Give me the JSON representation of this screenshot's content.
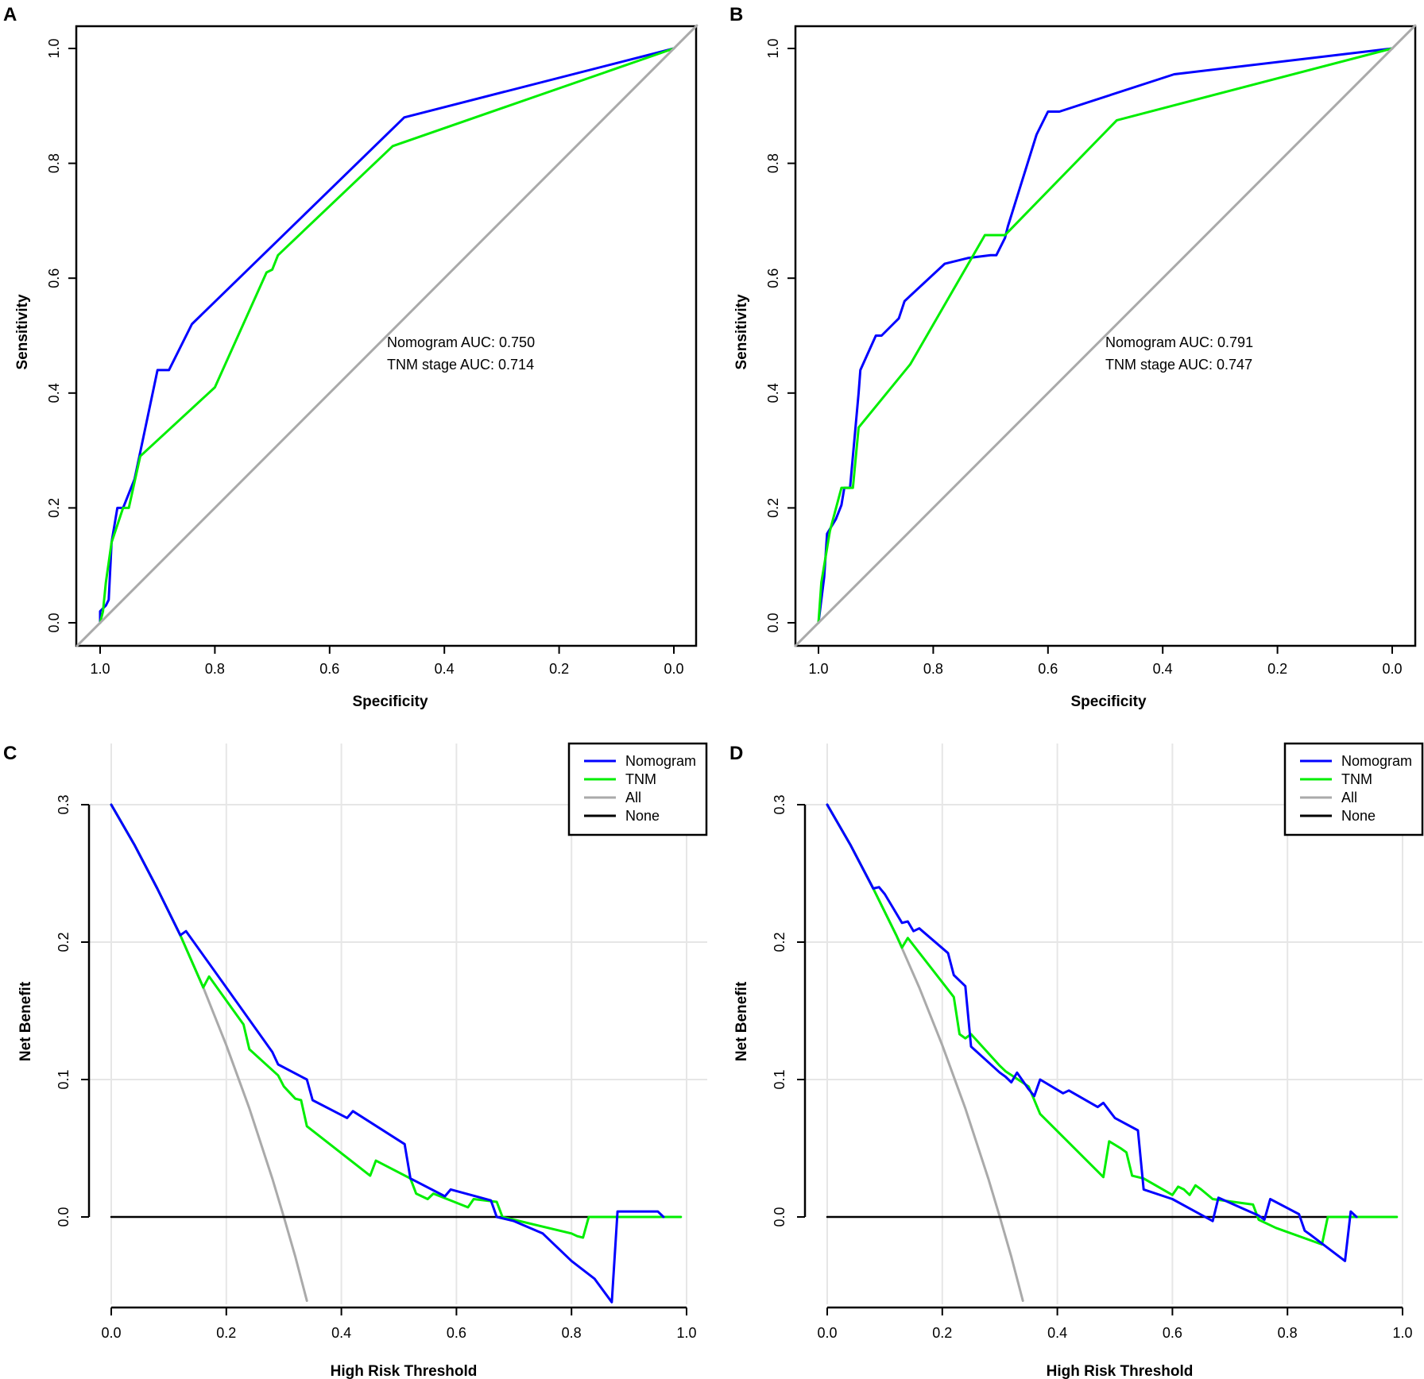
{
  "chart_data": [
    {
      "panel": "A",
      "type": "line",
      "xlabel": "Specificity",
      "ylabel": "Sensitivity",
      "xlim": [
        1.0,
        0.0
      ],
      "ylim": [
        0.0,
        1.0
      ],
      "xticks": [
        "1.0",
        "0.8",
        "0.6",
        "0.4",
        "0.2",
        "0.0"
      ],
      "yticks": [
        "0.0",
        "0.2",
        "0.4",
        "0.6",
        "0.8",
        "1.0"
      ],
      "annotations": [
        {
          "text": "Nomogram AUC: 0.750",
          "color": "#0000ff"
        },
        {
          "text": "TNM stage AUC: 0.714",
          "color": "#00ee00"
        }
      ],
      "series": [
        {
          "name": "Nomogram",
          "color": "#0000ff",
          "x": [
            1.0,
            1.0,
            0.99,
            0.985,
            0.98,
            0.97,
            0.96,
            0.94,
            0.9,
            0.88,
            0.84,
            0.47,
            0.0
          ],
          "y": [
            0.0,
            0.02,
            0.03,
            0.04,
            0.14,
            0.2,
            0.2,
            0.25,
            0.44,
            0.44,
            0.52,
            0.88,
            1.0
          ]
        },
        {
          "name": "TNM stage",
          "color": "#00ee00",
          "x": [
            1.0,
            0.995,
            0.99,
            0.98,
            0.96,
            0.95,
            0.93,
            0.8,
            0.71,
            0.7,
            0.69,
            0.49,
            0.0
          ],
          "y": [
            0.0,
            0.02,
            0.07,
            0.14,
            0.2,
            0.2,
            0.29,
            0.41,
            0.61,
            0.615,
            0.64,
            0.83,
            1.0
          ]
        },
        {
          "name": "Reference",
          "color": "#aaaaaa",
          "x": [
            1.04,
            -0.04
          ],
          "y": [
            -0.04,
            1.04
          ]
        }
      ]
    },
    {
      "panel": "B",
      "type": "line",
      "xlabel": "Specificity",
      "ylabel": "Sensitivity",
      "xlim": [
        1.0,
        0.0
      ],
      "ylim": [
        0.0,
        1.0
      ],
      "xticks": [
        "1.0",
        "0.8",
        "0.6",
        "0.4",
        "0.2",
        "0.0"
      ],
      "yticks": [
        "0.0",
        "0.2",
        "0.4",
        "0.6",
        "0.8",
        "1.0"
      ],
      "annotations": [
        {
          "text": "Nomogram AUC: 0.791",
          "color": "#0000ff"
        },
        {
          "text": "TNM stage AUC: 0.747",
          "color": "#00ee00"
        }
      ],
      "series": [
        {
          "name": "Nomogram",
          "color": "#0000ff",
          "x": [
            1.0,
            0.995,
            0.99,
            0.985,
            0.97,
            0.96,
            0.955,
            0.945,
            0.93,
            0.927,
            0.9,
            0.89,
            0.87,
            0.86,
            0.85,
            0.78,
            0.74,
            0.7,
            0.69,
            0.675,
            0.67,
            0.62,
            0.6,
            0.58,
            0.38,
            0.0
          ],
          "y": [
            0.0,
            0.04,
            0.08,
            0.155,
            0.18,
            0.205,
            0.235,
            0.235,
            0.4,
            0.44,
            0.5,
            0.5,
            0.52,
            0.53,
            0.56,
            0.625,
            0.635,
            0.64,
            0.64,
            0.67,
            0.69,
            0.85,
            0.89,
            0.89,
            0.955,
            1.0
          ]
        },
        {
          "name": "TNM stage",
          "color": "#00ee00",
          "x": [
            1.0,
            0.995,
            0.98,
            0.96,
            0.94,
            0.93,
            0.84,
            0.71,
            0.675,
            0.48,
            0.0
          ],
          "y": [
            0.0,
            0.07,
            0.16,
            0.235,
            0.235,
            0.34,
            0.45,
            0.675,
            0.675,
            0.875,
            1.0
          ]
        },
        {
          "name": "Reference",
          "color": "#aaaaaa",
          "x": [
            1.04,
            -0.04
          ],
          "y": [
            -0.04,
            1.04
          ]
        }
      ]
    },
    {
      "panel": "C",
      "type": "line",
      "xlabel": "High Risk Threshold",
      "ylabel": "Net Benefit",
      "xlim": [
        0.0,
        1.0
      ],
      "ylim": [
        -0.06,
        0.3
      ],
      "xticks": [
        "0.0",
        "0.2",
        "0.4",
        "0.6",
        "0.8",
        "1.0"
      ],
      "yticks": [
        "0.0",
        "0.1",
        "0.2",
        "0.3"
      ],
      "legend": [
        "Nomogram",
        "TNM",
        "All",
        "None"
      ],
      "legend_position": "top-right",
      "series": [
        {
          "name": "All",
          "color": "#aaaaaa",
          "x": [
            0.0,
            0.04,
            0.08,
            0.12,
            0.16,
            0.2,
            0.24,
            0.28,
            0.3,
            0.32,
            0.34
          ],
          "y": [
            0.3,
            0.271,
            0.239,
            0.205,
            0.167,
            0.125,
            0.079,
            0.028,
            0.0,
            -0.029,
            -0.061
          ]
        },
        {
          "name": "None",
          "color": "#000000",
          "x": [
            0.0,
            0.99
          ],
          "y": [
            0.0,
            0.0
          ]
        },
        {
          "name": "TNM",
          "color": "#00ee00",
          "x": [
            0.0,
            0.04,
            0.08,
            0.12,
            0.16,
            0.17,
            0.23,
            0.24,
            0.29,
            0.3,
            0.32,
            0.33,
            0.34,
            0.45,
            0.46,
            0.52,
            0.53,
            0.55,
            0.56,
            0.62,
            0.63,
            0.67,
            0.68,
            0.8,
            0.81,
            0.82,
            0.83,
            0.99
          ],
          "y": [
            0.3,
            0.271,
            0.239,
            0.205,
            0.167,
            0.175,
            0.14,
            0.122,
            0.103,
            0.095,
            0.086,
            0.085,
            0.066,
            0.03,
            0.041,
            0.028,
            0.017,
            0.013,
            0.017,
            0.007,
            0.013,
            0.011,
            0.0,
            -0.012,
            -0.014,
            -0.015,
            0.0,
            0.0
          ]
        },
        {
          "name": "Nomogram",
          "color": "#0000ff",
          "x": [
            0.0,
            0.04,
            0.08,
            0.12,
            0.13,
            0.2,
            0.28,
            0.29,
            0.34,
            0.35,
            0.41,
            0.42,
            0.51,
            0.52,
            0.58,
            0.59,
            0.66,
            0.67,
            0.7,
            0.75,
            0.8,
            0.84,
            0.87,
            0.88,
            0.95,
            0.96
          ],
          "y": [
            0.3,
            0.271,
            0.239,
            0.205,
            0.208,
            0.167,
            0.12,
            0.111,
            0.1,
            0.085,
            0.072,
            0.077,
            0.053,
            0.028,
            0.015,
            0.02,
            0.012,
            0.0,
            -0.003,
            -0.012,
            -0.032,
            -0.045,
            -0.062,
            0.004,
            0.004,
            0.0
          ]
        }
      ]
    },
    {
      "panel": "D",
      "type": "line",
      "xlabel": "High Risk Threshold",
      "ylabel": "Net Benefit",
      "xlim": [
        0.0,
        1.0
      ],
      "ylim": [
        -0.06,
        0.3
      ],
      "xticks": [
        "0.0",
        "0.2",
        "0.4",
        "0.6",
        "0.8",
        "1.0"
      ],
      "yticks": [
        "0.0",
        "0.1",
        "0.2",
        "0.3"
      ],
      "legend": [
        "Nomogram",
        "TNM",
        "All",
        "None"
      ],
      "legend_position": "top-right",
      "series": [
        {
          "name": "All",
          "color": "#aaaaaa",
          "x": [
            0.0,
            0.04,
            0.08,
            0.12,
            0.16,
            0.2,
            0.24,
            0.28,
            0.3,
            0.32,
            0.34
          ],
          "y": [
            0.3,
            0.271,
            0.239,
            0.205,
            0.167,
            0.125,
            0.079,
            0.028,
            0.0,
            -0.029,
            -0.061
          ]
        },
        {
          "name": "None",
          "color": "#000000",
          "x": [
            0.0,
            0.99
          ],
          "y": [
            0.0,
            0.0
          ]
        },
        {
          "name": "TNM",
          "color": "#00ee00",
          "x": [
            0.0,
            0.04,
            0.08,
            0.12,
            0.13,
            0.14,
            0.22,
            0.23,
            0.24,
            0.25,
            0.3,
            0.31,
            0.35,
            0.37,
            0.48,
            0.49,
            0.51,
            0.52,
            0.53,
            0.55,
            0.6,
            0.61,
            0.62,
            0.63,
            0.64,
            0.65,
            0.67,
            0.74,
            0.75,
            0.78,
            0.86,
            0.87,
            0.99
          ],
          "y": [
            0.3,
            0.271,
            0.239,
            0.205,
            0.196,
            0.203,
            0.16,
            0.133,
            0.13,
            0.133,
            0.11,
            0.106,
            0.095,
            0.075,
            0.029,
            0.055,
            0.05,
            0.047,
            0.03,
            0.028,
            0.016,
            0.022,
            0.02,
            0.016,
            0.023,
            0.02,
            0.013,
            0.009,
            -0.002,
            -0.008,
            -0.02,
            0.0,
            0.0
          ]
        },
        {
          "name": "Nomogram",
          "color": "#0000ff",
          "x": [
            0.0,
            0.04,
            0.08,
            0.09,
            0.1,
            0.13,
            0.14,
            0.15,
            0.16,
            0.21,
            0.22,
            0.23,
            0.24,
            0.25,
            0.3,
            0.31,
            0.32,
            0.33,
            0.35,
            0.36,
            0.37,
            0.41,
            0.42,
            0.47,
            0.48,
            0.5,
            0.54,
            0.55,
            0.6,
            0.67,
            0.68,
            0.75,
            0.76,
            0.77,
            0.82,
            0.83,
            0.84,
            0.9,
            0.91,
            0.92
          ],
          "y": [
            0.3,
            0.271,
            0.239,
            0.24,
            0.235,
            0.214,
            0.215,
            0.208,
            0.21,
            0.192,
            0.176,
            0.172,
            0.168,
            0.124,
            0.105,
            0.102,
            0.098,
            0.105,
            0.093,
            0.088,
            0.1,
            0.09,
            0.092,
            0.08,
            0.083,
            0.072,
            0.063,
            0.02,
            0.013,
            -0.003,
            0.014,
            0.001,
            -0.002,
            0.013,
            0.002,
            -0.01,
            -0.013,
            -0.032,
            0.004,
            0.0
          ]
        }
      ]
    }
  ]
}
